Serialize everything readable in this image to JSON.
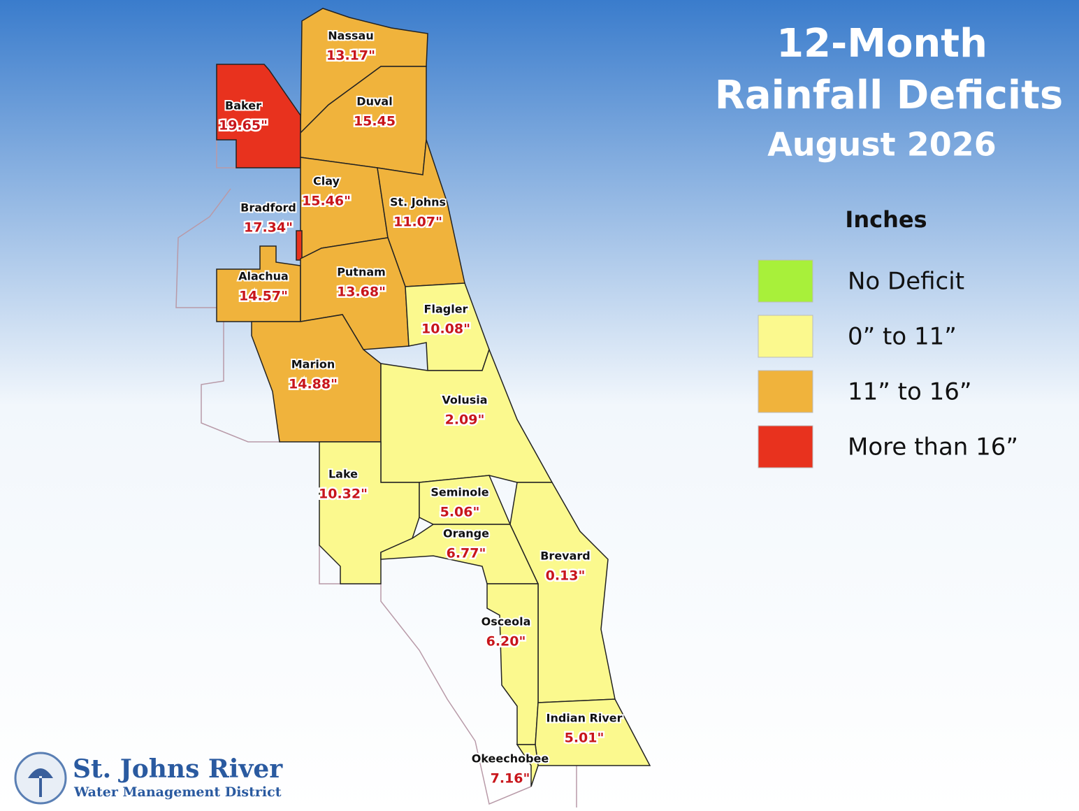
{
  "title": [
    "12-Month",
    "Rainfall Deficits",
    "August 2026"
  ],
  "legend": {
    "title": "Inches",
    "items": [
      {
        "label": "No Deficit",
        "color": "#a8f03a"
      },
      {
        "label": "0” to 11”",
        "color": "#fbf98e"
      },
      {
        "label": "11” to 16”",
        "color": "#f0b33c"
      },
      {
        "label": "More than 16”",
        "color": "#e8321e"
      }
    ]
  },
  "counties": [
    {
      "name": "Nassau",
      "label": "13.17\"",
      "color": "#f0b33c"
    },
    {
      "name": "Baker",
      "label": "19.65\"",
      "color": "#e8321e"
    },
    {
      "name": "Duval",
      "label": "15.45",
      "color": "#f0b33c"
    },
    {
      "name": "Clay",
      "label": "15.46\"",
      "color": "#f0b33c"
    },
    {
      "name": "St. Johns",
      "label": "11.07\"",
      "color": "#f0b33c"
    },
    {
      "name": "Bradford",
      "label": "17.34\"",
      "color": "#e8321e"
    },
    {
      "name": "Alachua",
      "label": "14.57\"",
      "color": "#f0b33c"
    },
    {
      "name": "Putnam",
      "label": "13.68\"",
      "color": "#f0b33c"
    },
    {
      "name": "Flagler",
      "label": "10.08\"",
      "color": "#fbf98e"
    },
    {
      "name": "Marion",
      "label": "14.88\"",
      "color": "#f0b33c"
    },
    {
      "name": "Volusia",
      "label": "2.09\"",
      "color": "#fbf98e"
    },
    {
      "name": "Lake",
      "label": "10.32\"",
      "color": "#fbf98e"
    },
    {
      "name": "Seminole",
      "label": "5.06\"",
      "color": "#fbf98e"
    },
    {
      "name": "Orange",
      "label": "6.77\"",
      "color": "#fbf98e"
    },
    {
      "name": "Brevard",
      "label": "0.13\"",
      "color": "#fbf98e"
    },
    {
      "name": "Osceola",
      "label": "6.20\"",
      "color": "#fbf98e"
    },
    {
      "name": "Indian River",
      "label": "5.01\"",
      "color": "#fbf98e"
    },
    {
      "name": "Okeechobee",
      "label": "7.16\"",
      "color": "#fbf98e"
    }
  ],
  "logo": {
    "name": "St. Johns River",
    "subtitle": "Water Management District"
  }
}
